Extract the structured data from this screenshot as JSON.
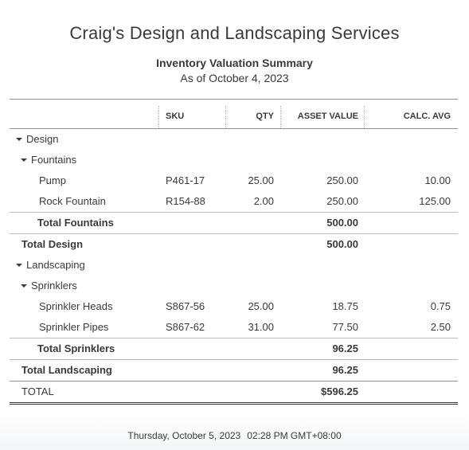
{
  "header": {
    "company": "Craig's Design and Landscaping Services",
    "title": "Inventory Valuation Summary",
    "as_of": "As of October 4, 2023"
  },
  "columns": {
    "sku": "SKU",
    "qty": "QTY",
    "asset_value": "ASSET VALUE",
    "calc_avg": "CALC. AVG"
  },
  "groups": {
    "design": {
      "label": "Design",
      "fountains": {
        "label": "Fountains",
        "items": [
          {
            "name": "Pump",
            "sku": "P461-17",
            "qty": "25.00",
            "asset_value": "250.00",
            "calc_avg": "10.00"
          },
          {
            "name": "Rock Fountain",
            "sku": "R154-88",
            "qty": "2.00",
            "asset_value": "250.00",
            "calc_avg": "125.00"
          }
        ],
        "total_label": "Total Fountains",
        "total_value": "500.00"
      },
      "total_label": "Total Design",
      "total_value": "500.00"
    },
    "landscaping": {
      "label": "Landscaping",
      "sprinklers": {
        "label": "Sprinklers",
        "items": [
          {
            "name": "Sprinkler Heads",
            "sku": "S867-56",
            "qty": "25.00",
            "asset_value": "18.75",
            "calc_avg": "0.75"
          },
          {
            "name": "Sprinkler Pipes",
            "sku": "S867-62",
            "qty": "31.00",
            "asset_value": "77.50",
            "calc_avg": "2.50"
          }
        ],
        "total_label": "Total Sprinklers",
        "total_value": "96.25"
      },
      "total_label": "Total Landscaping",
      "total_value": "96.25"
    }
  },
  "grand_total": {
    "label": "TOTAL",
    "value": "$596.25"
  },
  "footer": {
    "date": "Thursday, October 5, 2023",
    "time": "02:28 PM GMT+08:00"
  }
}
